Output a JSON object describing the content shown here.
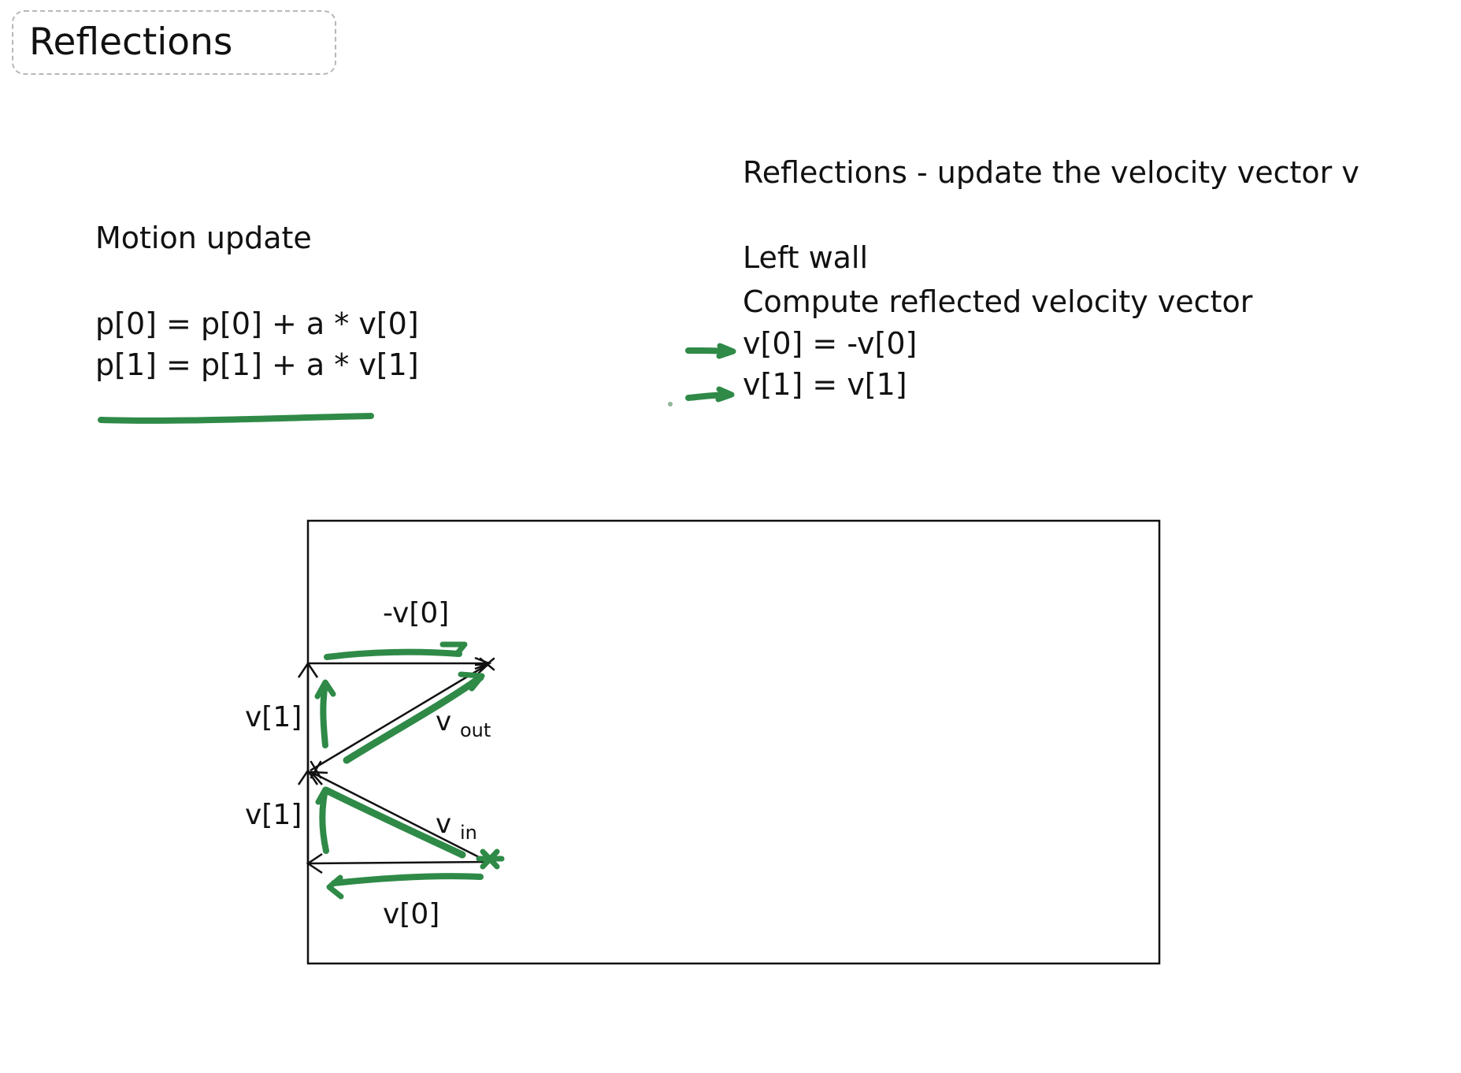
{
  "title": "Reflections",
  "left_panel": {
    "heading": "Motion update",
    "equations": [
      "p[0] = p[0] + a * v[0]",
      "p[1] = p[1] + a * v[1]"
    ]
  },
  "right_panel": {
    "heading": "Reflections - update the velocity vector v",
    "subheading": "Left wall",
    "description": "Compute reflected velocity vector",
    "equations": [
      "v[0] = -v[0]",
      "v[1] = v[1]"
    ]
  },
  "diagram": {
    "labels": {
      "top": "-v[0]",
      "upper_left": "v[1]",
      "lower_left": "v[1]",
      "bottom": "v[0]",
      "vout_base": "v",
      "vout_sub": "out",
      "vin_base": "v",
      "vin_sub": "in"
    }
  },
  "colors": {
    "ink": "#111111",
    "annotation_green": "#2f8a47",
    "title_border": "#b8b8b8"
  }
}
